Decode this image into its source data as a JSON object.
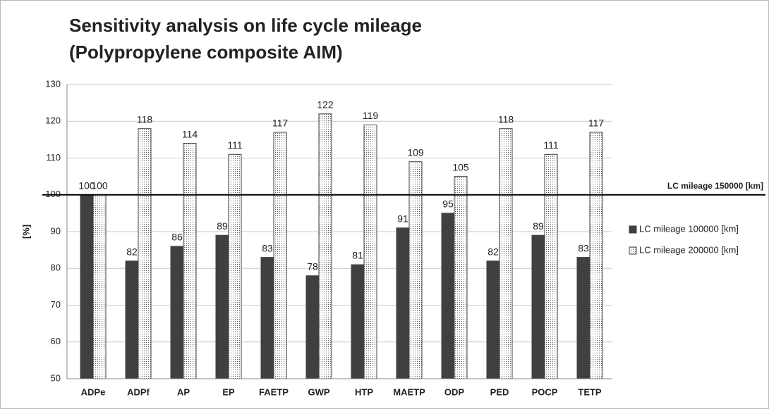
{
  "chart_data": {
    "type": "bar",
    "title": [
      "Sensitivity analysis on life cycle mileage",
      "(Polypropylene composite AIM)"
    ],
    "y_label": "[%]",
    "categories": [
      "ADPe",
      "ADPf",
      "AP",
      "EP",
      "FAETP",
      "GWP",
      "HTP",
      "MAETP",
      "ODP",
      "PED",
      "POCP",
      "TETP"
    ],
    "series": [
      {
        "name": "LC mileage 100000 [km]",
        "color": "#404040",
        "pattern": "solid",
        "values": [
          100,
          82,
          86,
          89,
          83,
          78,
          81,
          91,
          95,
          82,
          89,
          83
        ]
      },
      {
        "name": "LC mileage 200000 [km]",
        "color": "#404040",
        "pattern": "dotted",
        "values": [
          100,
          118,
          114,
          111,
          117,
          122,
          119,
          109,
          105,
          118,
          111,
          117
        ]
      }
    ],
    "reference_line": {
      "label": "LC mileage 150000 [km]",
      "value": 100
    },
    "ylim": [
      50,
      130
    ],
    "yticks": [
      50,
      60,
      70,
      80,
      90,
      100,
      110,
      120,
      130
    ],
    "grid": true,
    "legend": "right"
  }
}
